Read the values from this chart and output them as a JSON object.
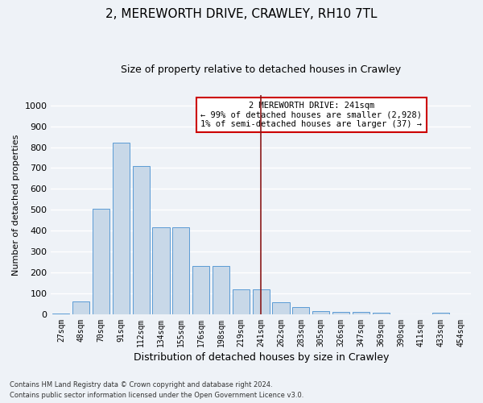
{
  "title": "2, MEREWORTH DRIVE, CRAWLEY, RH10 7TL",
  "subtitle": "Size of property relative to detached houses in Crawley",
  "xlabel": "Distribution of detached houses by size in Crawley",
  "ylabel": "Number of detached properties",
  "categories": [
    "27sqm",
    "48sqm",
    "70sqm",
    "91sqm",
    "112sqm",
    "134sqm",
    "155sqm",
    "176sqm",
    "198sqm",
    "219sqm",
    "241sqm",
    "262sqm",
    "283sqm",
    "305sqm",
    "326sqm",
    "347sqm",
    "369sqm",
    "390sqm",
    "411sqm",
    "433sqm",
    "454sqm"
  ],
  "values": [
    5,
    60,
    505,
    820,
    710,
    415,
    415,
    230,
    230,
    120,
    120,
    57,
    35,
    15,
    12,
    12,
    8,
    0,
    0,
    8,
    0
  ],
  "bar_color": "#c8d8e8",
  "bar_edge_color": "#5b9bd5",
  "vline_x": 10,
  "vline_color": "#8b1a1a",
  "annotation_title": "2 MEREWORTH DRIVE: 241sqm",
  "annotation_line1": "← 99% of detached houses are smaller (2,928)",
  "annotation_line2": "1% of semi-detached houses are larger (37) →",
  "annotation_box_color": "#ffffff",
  "annotation_box_edge": "#cc0000",
  "ylim": [
    0,
    1050
  ],
  "yticks": [
    0,
    100,
    200,
    300,
    400,
    500,
    600,
    700,
    800,
    900,
    1000
  ],
  "footer1": "Contains HM Land Registry data © Crown copyright and database right 2024.",
  "footer2": "Contains public sector information licensed under the Open Government Licence v3.0.",
  "bg_color": "#eef2f7",
  "grid_color": "#ffffff",
  "title_fontsize": 11,
  "subtitle_fontsize": 9,
  "tick_fontsize": 7,
  "ylabel_fontsize": 8,
  "xlabel_fontsize": 9
}
